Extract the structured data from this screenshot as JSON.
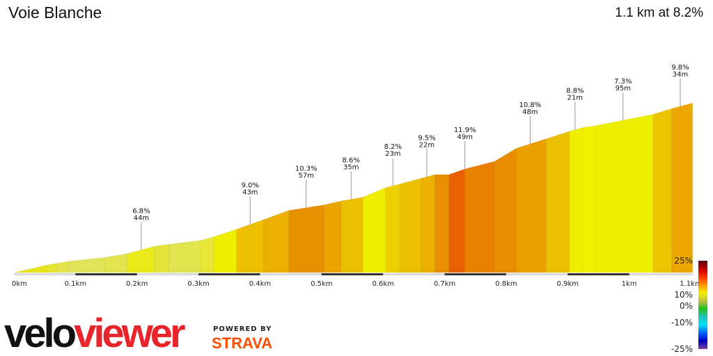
{
  "title": "Voie Blanche",
  "summary": "1.1 km at 8.2%",
  "branding": {
    "logo_part1": "velo",
    "logo_part2": "viewer",
    "powered_by": "POWERED BY",
    "strava": "STRAVA"
  },
  "chart_data": {
    "type": "area",
    "title": "Voie Blanche",
    "xlabel": "",
    "ylabel": "",
    "xlim": [
      0,
      1.1
    ],
    "x_ticks": [
      "0km",
      "0.1km",
      "0.2km",
      "0.3km",
      "0.4km",
      "0.5km",
      "0.6km",
      "0.7km",
      "0.8km",
      "0.9km",
      "1km",
      "1.1km"
    ],
    "x_tick_values": [
      0,
      0.1,
      0.2,
      0.3,
      0.4,
      0.5,
      0.6,
      0.7,
      0.8,
      0.9,
      1.0,
      1.1
    ],
    "profile_km": [
      0,
      0.054,
      0.071,
      0.089,
      0.147,
      0.184,
      0.229,
      0.252,
      0.303,
      0.325,
      0.362,
      0.405,
      0.447,
      0.505,
      0.532,
      0.567,
      0.604,
      0.627,
      0.662,
      0.684,
      0.707,
      0.733,
      0.781,
      0.817,
      0.865,
      0.903,
      0.925,
      0.946,
      1.039,
      1.069,
      1.103
    ],
    "elevation_m": [
      0,
      4,
      5,
      6,
      8,
      10,
      14,
      15,
      17,
      19,
      23,
      28,
      33,
      36,
      38,
      40,
      45,
      47,
      50,
      52,
      52,
      55,
      59,
      66,
      71,
      75,
      77,
      78,
      84,
      87,
      90
    ],
    "segment_colors": [
      "#e8e41c",
      "#e6e42e",
      "#e2e44a",
      "#e0e458",
      "#e2e450",
      "#eaea1a",
      "#e4e438",
      "#e0e44e",
      "#e6e636",
      "#eeee00",
      "#ecc000",
      "#ecb000",
      "#e99000",
      "#eca400",
      "#ecc000",
      "#eeee00",
      "#ecd000",
      "#ecc000",
      "#ecb000",
      "#e88e00",
      "#e86000",
      "#e88000",
      "#e88c00",
      "#eca000",
      "#ecc000",
      "#eeee00",
      "#f0f000",
      "#eeee00",
      "#ecc400",
      "#eca800"
    ],
    "annotations": [
      {
        "km": 0.207,
        "grade": "6.8%",
        "length": "44m"
      },
      {
        "km": 0.384,
        "grade": "9.0%",
        "length": "43m"
      },
      {
        "km": 0.475,
        "grade": "10.3%",
        "length": "57m"
      },
      {
        "km": 0.548,
        "grade": "8.6%",
        "length": "35m"
      },
      {
        "km": 0.616,
        "grade": "8.2%",
        "length": "23m"
      },
      {
        "km": 0.671,
        "grade": "9.5%",
        "length": "22m"
      },
      {
        "km": 0.733,
        "grade": "11.9%",
        "length": "49m"
      },
      {
        "km": 0.839,
        "grade": "10.8%",
        "length": "48m"
      },
      {
        "km": 0.912,
        "grade": "8.8%",
        "length": "21m"
      },
      {
        "km": 0.99,
        "grade": "7.3%",
        "length": "95m"
      },
      {
        "km": 1.083,
        "grade": "9.8%",
        "length": "34m"
      }
    ],
    "legend": {
      "labels": [
        "25%",
        "10%",
        "0%",
        "-10%",
        "-25%"
      ],
      "placement": "bottom-right",
      "gradient": [
        "#5a0010",
        "#c00000",
        "#ff3000",
        "#ff9000",
        "#f0f000",
        "#c0c040",
        "#20c020",
        "#20c0c0",
        "#00e0f0",
        "#0060ff",
        "#0000c0",
        "#8040a0"
      ]
    }
  }
}
